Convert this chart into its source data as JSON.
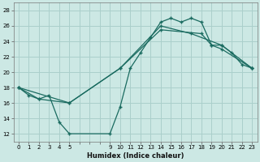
{
  "xlabel": "Humidex (Indice chaleur)",
  "bg_color": "#cce8e4",
  "grid_color": "#aacfcb",
  "line_color": "#1a6b60",
  "xlim": [
    -0.5,
    23.5
  ],
  "ylim": [
    11,
    29
  ],
  "yticks": [
    12,
    14,
    16,
    18,
    20,
    22,
    24,
    26,
    28
  ],
  "xtick_positions": [
    0,
    1,
    2,
    3,
    4,
    5,
    9,
    10,
    11,
    12,
    13,
    14,
    15,
    16,
    17,
    18,
    19,
    20,
    21,
    22,
    23
  ],
  "line1_x": [
    0,
    1,
    2,
    3,
    4,
    5,
    9,
    10,
    11,
    12,
    13,
    14,
    15,
    16,
    17,
    18,
    19,
    20,
    21,
    22,
    23
  ],
  "line1_y": [
    18.0,
    17.0,
    16.5,
    17.0,
    13.5,
    12.0,
    12.0,
    15.5,
    20.5,
    22.5,
    24.5,
    26.5,
    27.0,
    26.5,
    27.0,
    26.5,
    23.5,
    23.5,
    22.5,
    21.0,
    20.5
  ],
  "line2_x": [
    0,
    2,
    5,
    10,
    14,
    17,
    20,
    23
  ],
  "line2_y": [
    18.0,
    16.5,
    16.0,
    20.5,
    26.0,
    25.0,
    23.5,
    20.5
  ],
  "line3_x": [
    0,
    5,
    10,
    14,
    18,
    19,
    20,
    23
  ],
  "line3_y": [
    18.0,
    16.0,
    20.5,
    25.5,
    25.0,
    23.5,
    23.0,
    20.5
  ]
}
